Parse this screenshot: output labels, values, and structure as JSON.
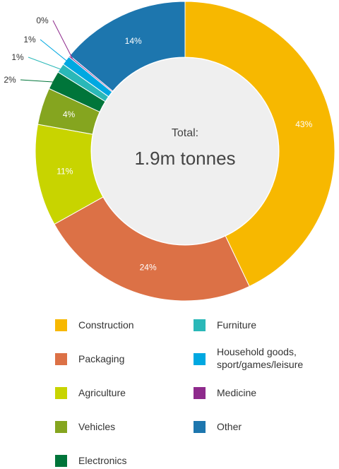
{
  "chart_data": {
    "type": "pie",
    "donut": true,
    "center": {
      "title": "Total:",
      "value": "1.9m tonnes"
    },
    "categories": [
      "Construction",
      "Packaging",
      "Agriculture",
      "Vehicles",
      "Electronics",
      "Furniture",
      "Household goods, sport/games/leisure",
      "Medicine",
      "Other"
    ],
    "values": [
      43,
      24,
      11,
      4,
      2,
      1,
      1,
      0,
      14
    ],
    "value_labels": [
      "43%",
      "24%",
      "11%",
      "4%",
      "2%",
      "1%",
      "1%",
      "0%",
      "14%"
    ],
    "colors": [
      "#f7b800",
      "#dc7146",
      "#c8d400",
      "#85a51f",
      "#00753a",
      "#2ab8b8",
      "#00a8e1",
      "#8e2a8c",
      "#1d76ae"
    ],
    "legend_placement": "bottom"
  },
  "legend": {
    "items": [
      {
        "label": "Construction",
        "color": "#f7b800"
      },
      {
        "label": "Packaging",
        "color": "#dc7146"
      },
      {
        "label": "Agriculture",
        "color": "#c8d400"
      },
      {
        "label": "Vehicles",
        "color": "#85a51f"
      },
      {
        "label": "Electronics",
        "color": "#00753a"
      },
      {
        "label": "Furniture",
        "color": "#2ab8b8"
      },
      {
        "label_line1": "Household goods,",
        "label_line2": "sport/games/leisure",
        "color": "#00a8e1"
      },
      {
        "label": "Medicine",
        "color": "#8e2a8c"
      },
      {
        "label": "Other",
        "color": "#1d76ae"
      }
    ]
  }
}
